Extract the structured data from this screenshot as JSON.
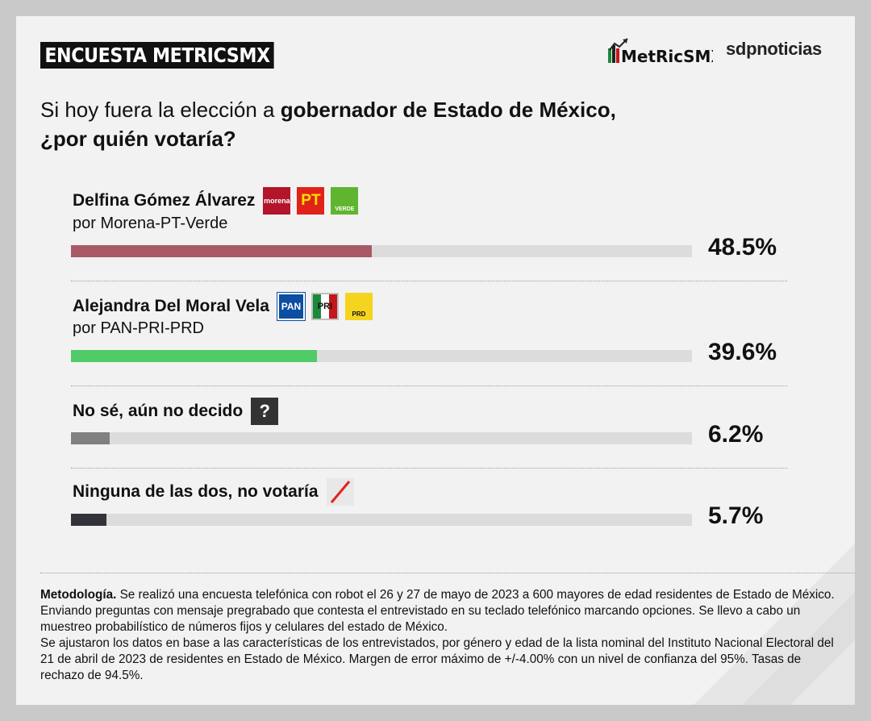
{
  "header": {
    "badge": "ENCUESTA METRICSMX",
    "metrics_logo": "MetRicSMX",
    "sdp_logo": "sdpnoticias"
  },
  "question": {
    "part1": "Si hoy fuera la elección a ",
    "part2_bold": "gobernador de Estado de México,",
    "part3_bold": "¿por quién votaría?"
  },
  "chart_data": {
    "type": "bar",
    "orientation": "horizontal",
    "categories": [
      "Delfina Gómez Álvarez",
      "Alejandra Del Moral Vela",
      "No sé, aún no decido",
      "Ninguna de las dos, no votaría"
    ],
    "subtitles": [
      "por Morena-PT-Verde",
      "por PAN-PRI-PRD",
      "",
      ""
    ],
    "values": [
      48.5,
      39.6,
      6.2,
      5.7
    ],
    "value_labels": [
      "48.5%",
      "39.6%",
      "6.2%",
      "5.7%"
    ],
    "colors": [
      "#a85a67",
      "#4fcb68",
      "#808080",
      "#33333a"
    ],
    "xlim": [
      0,
      100
    ],
    "grid": false
  },
  "party_icons": {
    "row1": [
      {
        "name": "morena-logo",
        "text": "morena",
        "color": "#b3152b"
      },
      {
        "name": "pt-logo",
        "text": "PT",
        "color": "#e0231a"
      },
      {
        "name": "verde-logo",
        "text": "VERDE",
        "color": "#5fb530"
      }
    ],
    "row2": [
      {
        "name": "pan-logo",
        "text": "PAN",
        "color": "#0b4ea2"
      },
      {
        "name": "pri-logo",
        "text": "PRI",
        "color": "#c0c0c0"
      },
      {
        "name": "prd-logo",
        "text": "PRD",
        "color": "#f5d41f"
      }
    ],
    "question_icon": "?",
    "none_icon": "slash-icon"
  },
  "methodology": {
    "label": "Metodología.",
    "line1": " Se realizó una encuesta telefónica con robot el 26 y 27 de mayo de 2023 a 600 mayores de edad residentes de Estado de México. Enviando preguntas con mensaje pregrabado que contesta el entrevistado en su teclado telefónico marcando opciones. Se llevo a cabo un muestreo probabilístico de números fijos y celulares del estado de México.",
    "line2": "Se ajustaron los datos en base a las características de los entrevistados, por género y edad de la lista nominal del Instituto Nacional Electoral del 21 de abril de 2023 de residentes en Estado de México. Margen de error máximo de +/-4.00% con un nivel de confianza del 95%. Tasas de rechazo de 94.5%."
  }
}
